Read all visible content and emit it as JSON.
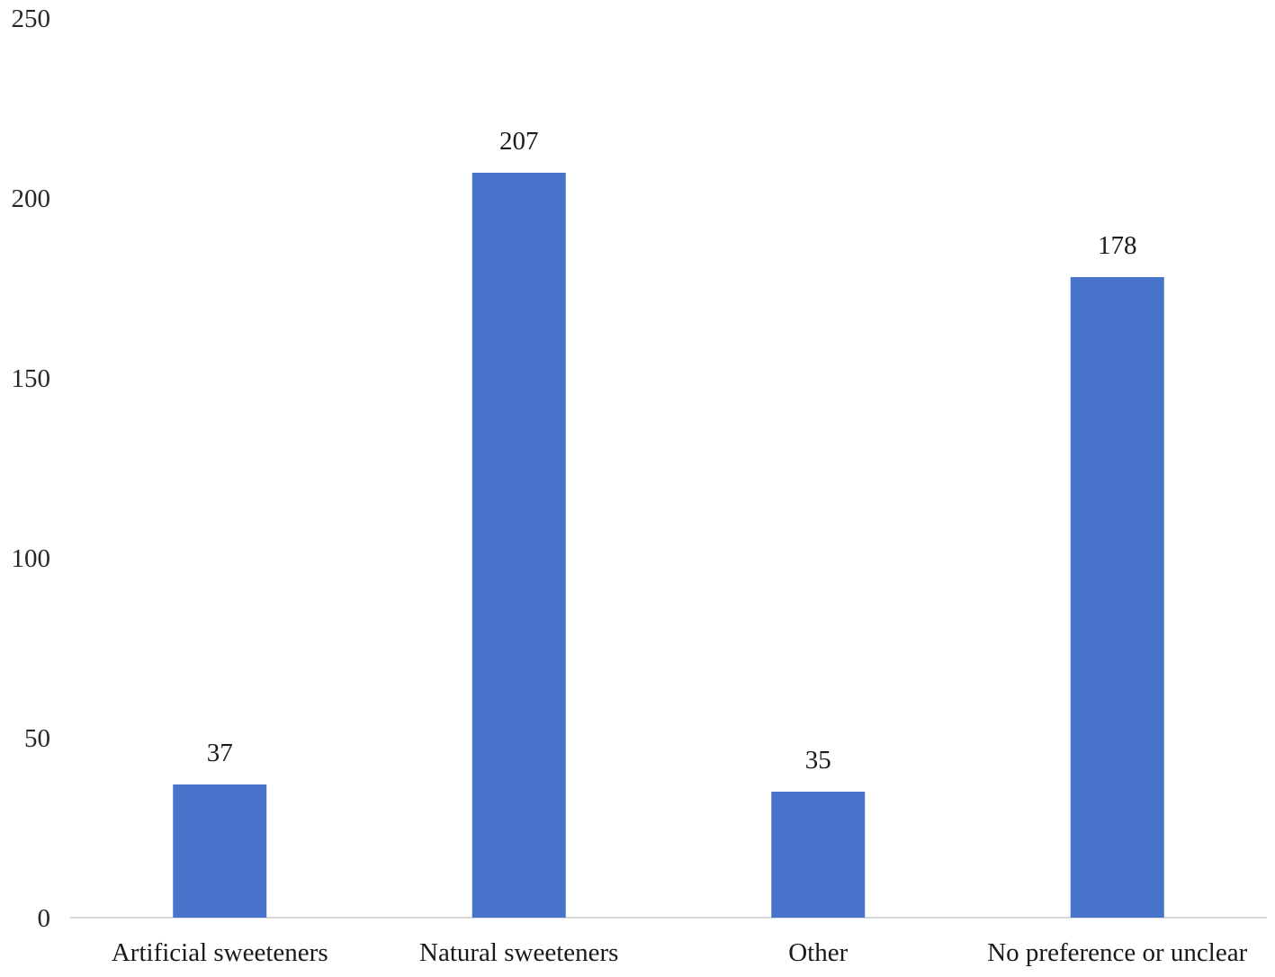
{
  "chart_data": {
    "type": "bar",
    "title": "",
    "xlabel": "",
    "ylabel": "",
    "categories": [
      "Artificial sweeteners",
      "Natural sweeteners",
      "Other",
      "No preference or unclear"
    ],
    "values": [
      37,
      207,
      35,
      178
    ],
    "data_labels": [
      "37",
      "207",
      "35",
      "178"
    ],
    "ylim": [
      0,
      250
    ],
    "y_ticks": [
      0,
      50,
      100,
      150,
      200,
      250
    ],
    "y_tick_labels": [
      "0",
      "50",
      "100",
      "150",
      "200",
      "250"
    ],
    "grid": false,
    "legend": "none",
    "bar_color": "#4774CA",
    "axis_color": "#D9D9D9"
  }
}
